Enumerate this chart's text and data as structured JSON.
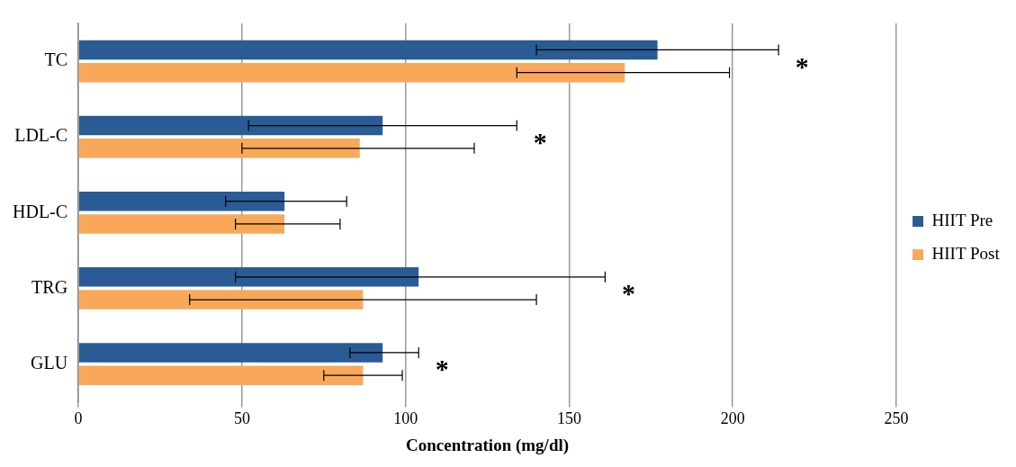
{
  "chart_data": {
    "type": "bar",
    "orientation": "horizontal",
    "xlabel": "Concentration (mg/dl)",
    "categories": [
      "TC",
      "LDL-C",
      "HDL-C",
      "TRG",
      "GLU"
    ],
    "series": [
      {
        "name": "HIIT Pre",
        "color": "#2a5b95",
        "values": [
          177,
          93,
          63,
          104,
          93
        ],
        "errors": [
          [
            140,
            214
          ],
          [
            52,
            134
          ],
          [
            45,
            82
          ],
          [
            48,
            161
          ],
          [
            83,
            104
          ]
        ]
      },
      {
        "name": "HIIT Post",
        "color": "#f9a85a",
        "values": [
          167,
          86,
          63,
          87,
          87
        ],
        "errors": [
          [
            134,
            199
          ],
          [
            50,
            121
          ],
          [
            48,
            80
          ],
          [
            34,
            140
          ],
          [
            75,
            99
          ]
        ]
      }
    ],
    "xlim": [
      0,
      250
    ],
    "xticks": [
      0,
      50,
      100,
      150,
      200,
      250
    ],
    "grid": "x",
    "legend": "right",
    "annotations": [
      "*",
      "*",
      "*",
      "*"
    ]
  }
}
